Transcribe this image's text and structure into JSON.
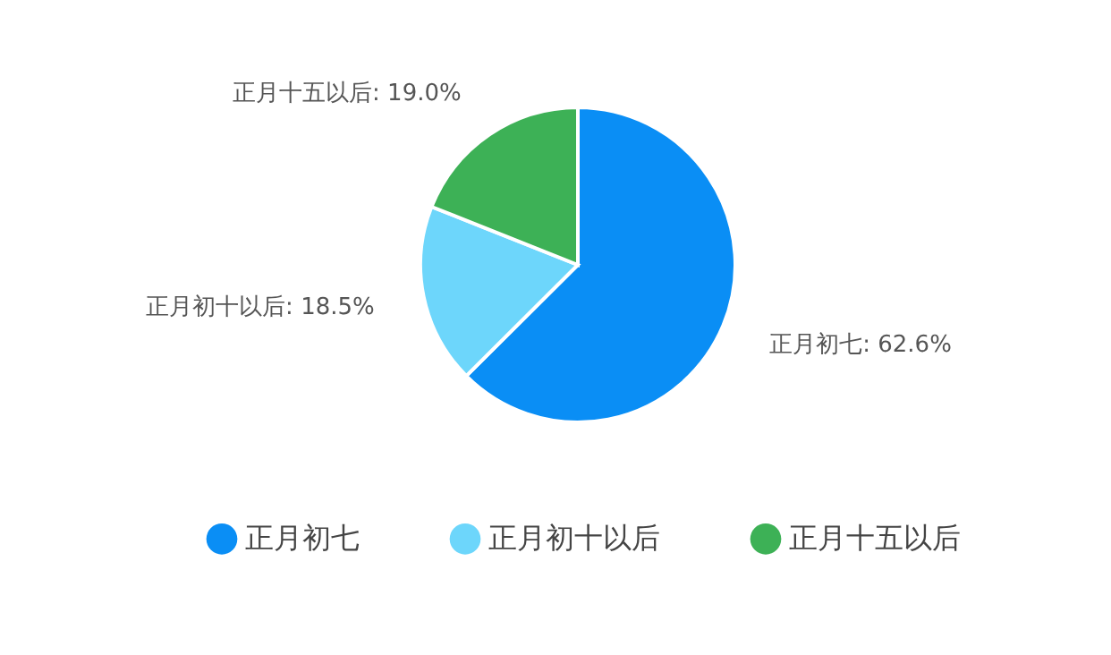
{
  "chart_data": {
    "type": "pie",
    "categories": [
      "正月初七",
      "正月初十以后",
      "正月十五以后"
    ],
    "values": [
      62.6,
      18.5,
      19.0
    ],
    "colors": [
      "#0a8ef5",
      "#6dd6fb",
      "#3db156"
    ],
    "value_labels": [
      ": 62.6%",
      ": 18.5%",
      ": 19.0%"
    ],
    "legend": "bottom"
  }
}
